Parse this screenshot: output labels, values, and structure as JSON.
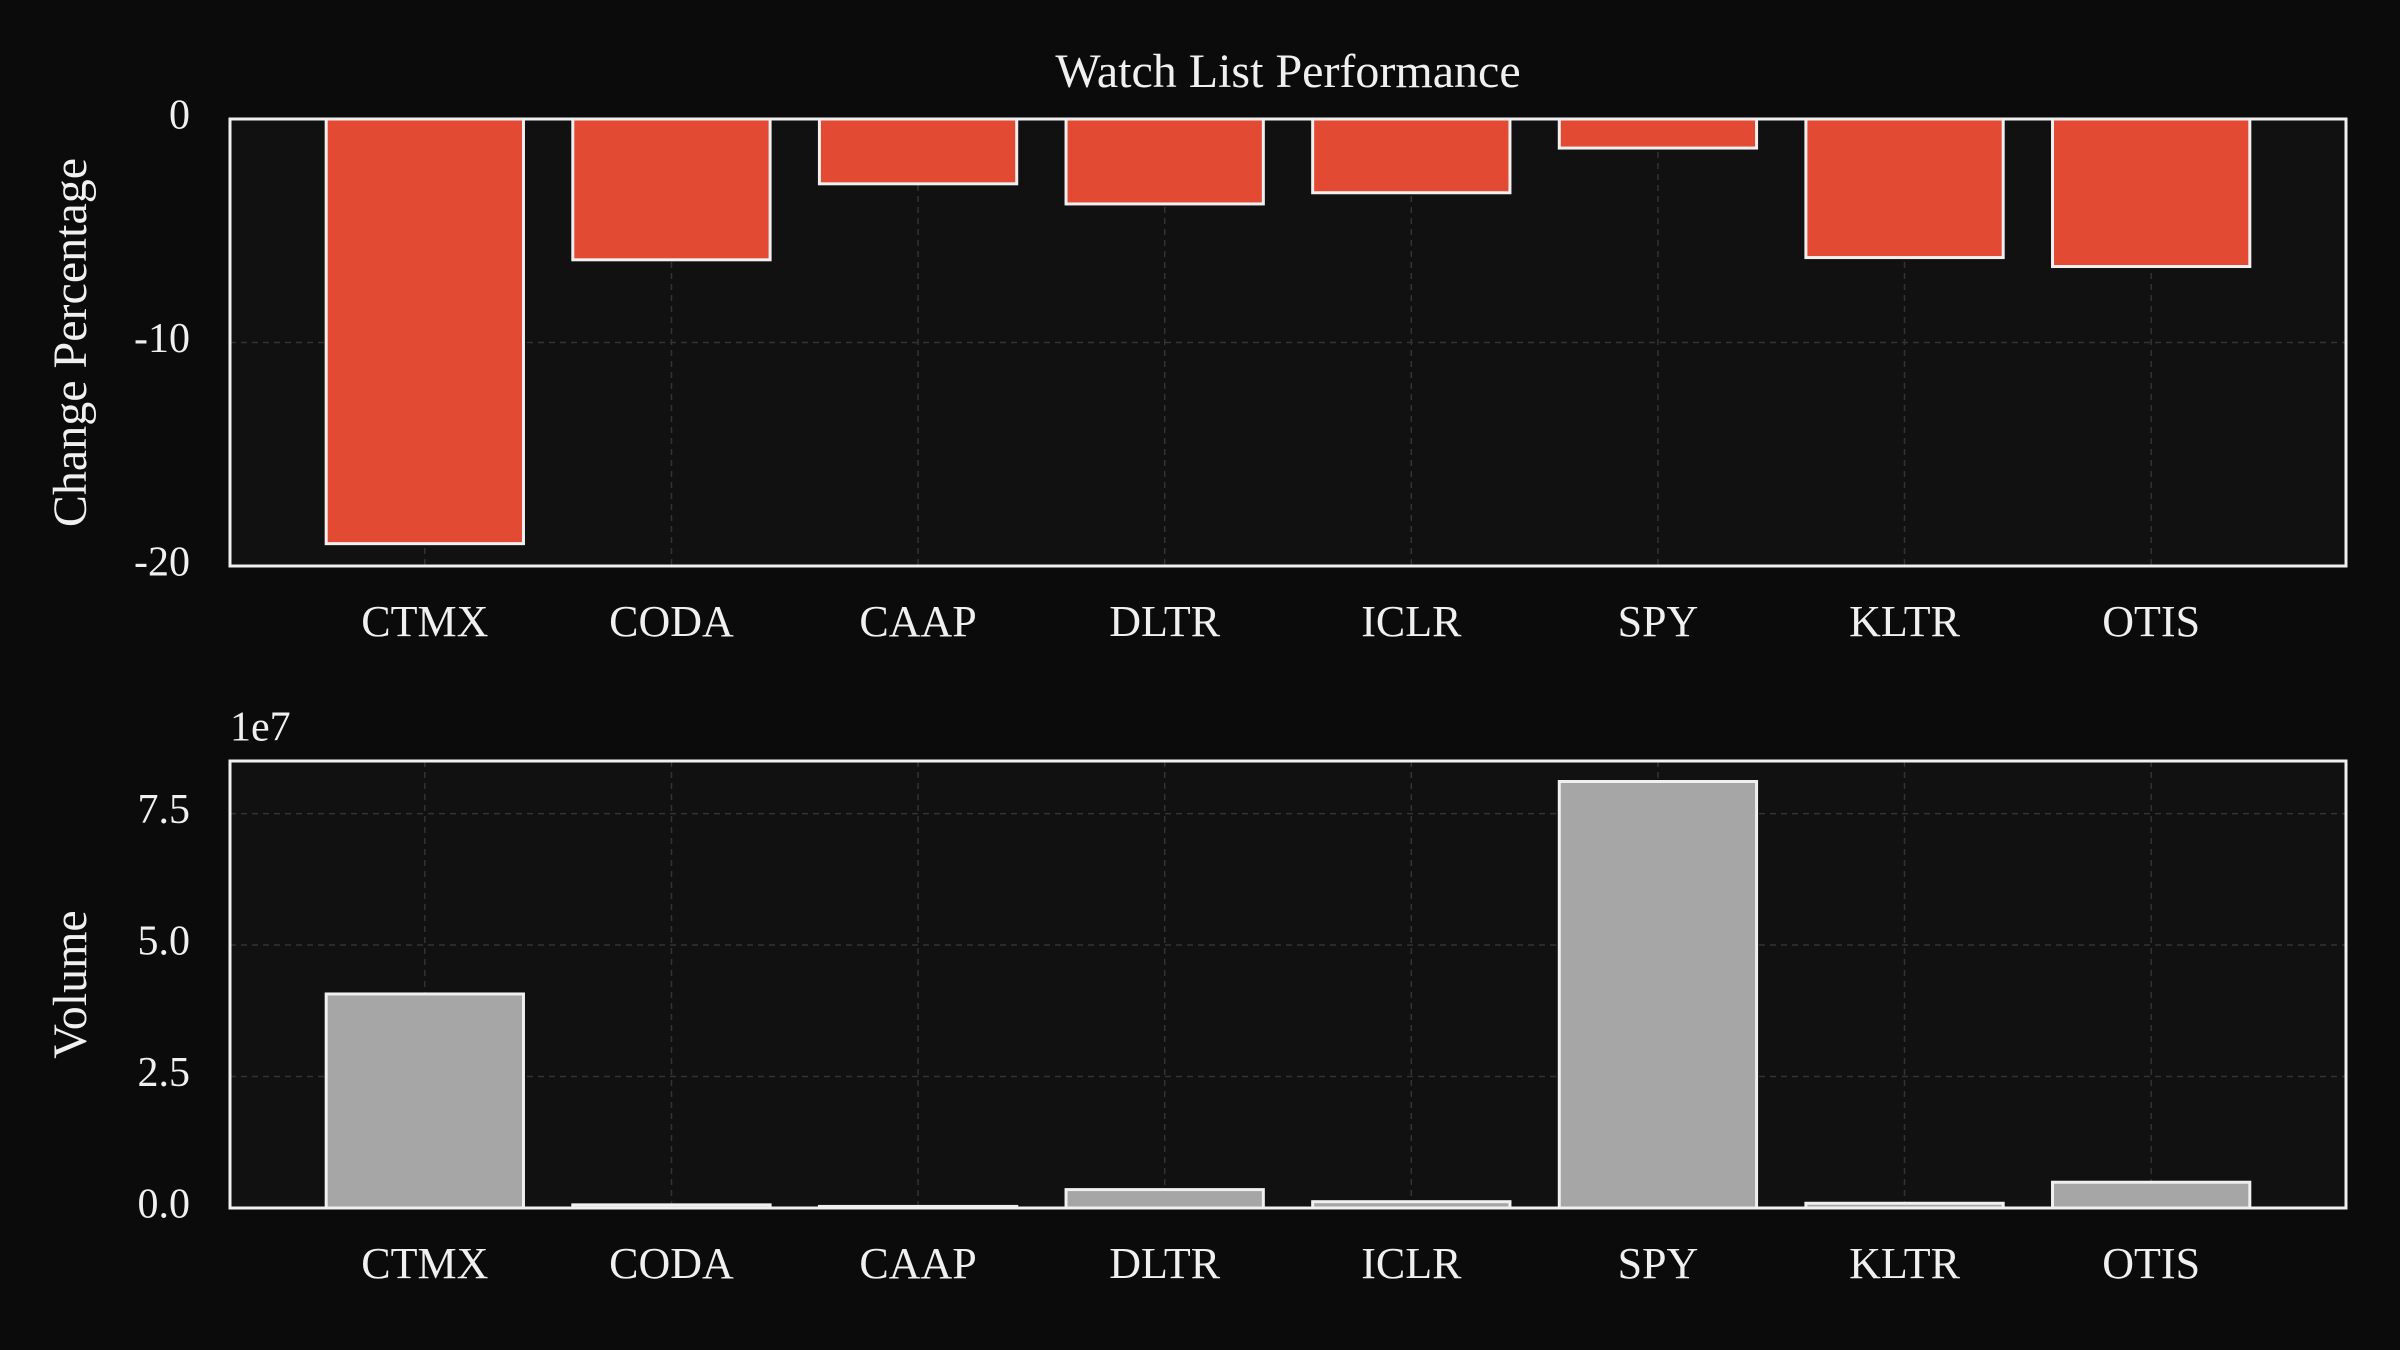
{
  "chart_data": [
    {
      "type": "bar",
      "title": "Watch List Performance",
      "y_label": "Change Percentage",
      "categories": [
        "CTMX",
        "CODA",
        "CAAP",
        "DLTR",
        "ICLR",
        "SPY",
        "KLTR",
        "OTIS"
      ],
      "values": [
        -19.0,
        -6.3,
        -2.9,
        -3.8,
        -3.3,
        -1.3,
        -6.2,
        -6.6
      ],
      "color": "#e34a33",
      "ylim": [
        -20,
        0
      ],
      "yticks": [
        -20,
        -10,
        0
      ],
      "grid": true
    },
    {
      "type": "bar",
      "y_label": "Volume",
      "offset_label": "1e7",
      "categories": [
        "CTMX",
        "CODA",
        "CAAP",
        "DLTR",
        "ICLR",
        "SPY",
        "KLTR",
        "OTIS"
      ],
      "values": [
        4.07,
        0.06,
        0.03,
        0.35,
        0.12,
        8.11,
        0.09,
        0.49
      ],
      "color": "#a6a6a6",
      "ylim": [
        0,
        8.5
      ],
      "yticks": [
        {
          "value": 0,
          "label": "0.0"
        },
        {
          "value": 2.5,
          "label": "2.5"
        },
        {
          "value": 5,
          "label": "5.0"
        },
        {
          "value": 7.5,
          "label": "7.5"
        }
      ],
      "grid": true
    }
  ]
}
